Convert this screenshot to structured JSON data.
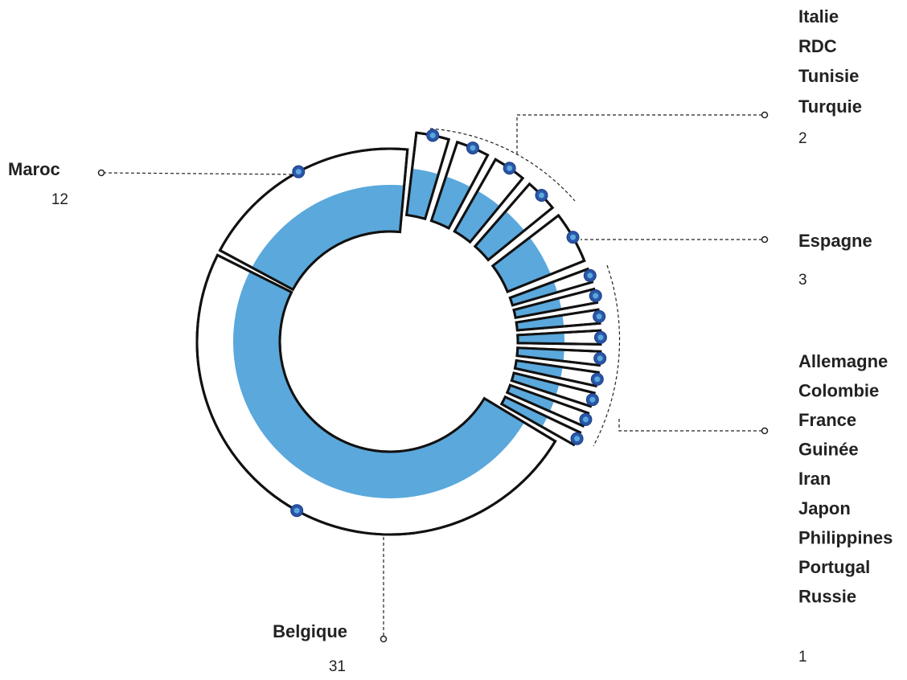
{
  "chart_data": {
    "type": "donut",
    "categories": [
      "Italie",
      "RDC",
      "Tunisie",
      "Turquie",
      "Espagne",
      "Allemagne",
      "Colombie",
      "France",
      "Guinée",
      "Iran",
      "Japon",
      "Philippines",
      "Portugal",
      "Russie",
      "Belgique",
      "Maroc"
    ],
    "values": [
      2,
      2,
      2,
      2,
      3,
      1,
      1,
      1,
      1,
      1,
      1,
      1,
      1,
      1,
      31,
      12
    ],
    "color": "#5aa8dc"
  }
}
